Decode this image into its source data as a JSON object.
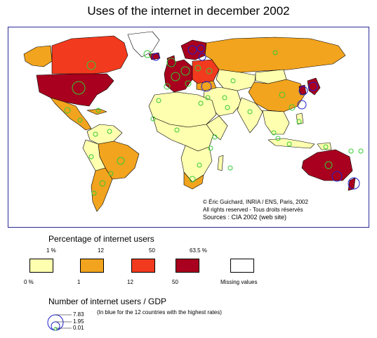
{
  "title": "Uses of the internet in december 2002",
  "credits": {
    "line1": "© Éric Guichard, INRIA / ENS, Paris, 2002",
    "line2": "All rights reserved - Tous droits réservés",
    "line3": "Sources : CIA 2002 (web site)"
  },
  "legend_percentage": {
    "title": "Percentage of internet users",
    "classes": [
      {
        "top": "1 %",
        "bottom": "0 %",
        "color": "#ffffb0"
      },
      {
        "top": "12",
        "bottom": "1",
        "color": "#f2a41e"
      },
      {
        "top": "50",
        "bottom": "12",
        "color": "#f23a1e"
      },
      {
        "top": "63.5 %",
        "bottom": "50",
        "color": "#a8001e"
      }
    ],
    "missing": {
      "label": "Missing values",
      "color": "#ffffff"
    }
  },
  "legend_gdp": {
    "title": "Number of internet users / GDP",
    "values": [
      "7.83",
      "1.95",
      "0.01"
    ],
    "note": "(In blue for the 12 countries with the highest rates)"
  },
  "colors": {
    "border": "#2a2a9a",
    "circle_normal": "#33cc33",
    "circle_highlight": "#2222cc"
  }
}
